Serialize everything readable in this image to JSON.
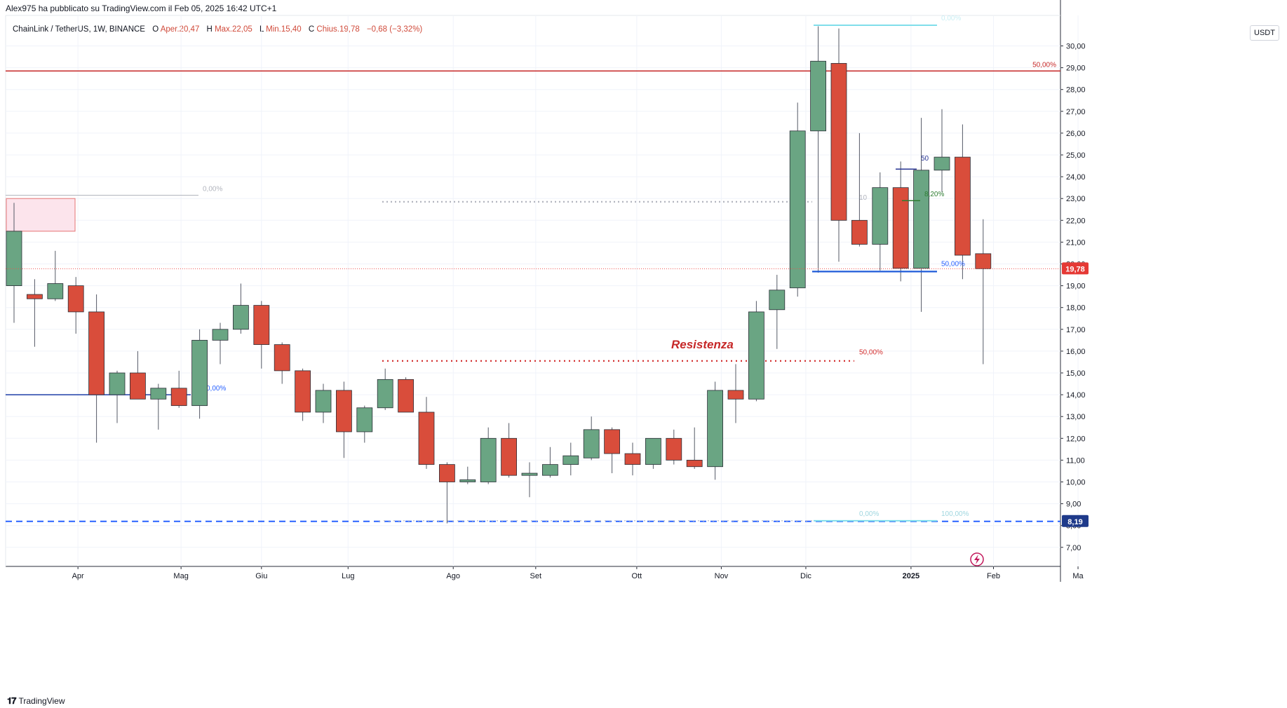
{
  "header": {
    "published": "Alex975 ha pubblicato su TradingView.com il Feb 05, 2025 16:42 UTC+1",
    "symbol": "ChainLink / TetherUS, 1W, BINANCE",
    "o_label": "O",
    "o_value": "Aper.20,47",
    "h_label": "H",
    "h_value": "Max.22,05",
    "l_label": "L",
    "l_value": "Min.15,40",
    "c_label": "C",
    "c_value": "Chius.19,78",
    "change": "−0,68 (−3,32%)"
  },
  "axis_unit": "USDT",
  "brand": "TradingView",
  "colors": {
    "up": "#6aa583",
    "down": "#d94d3b",
    "wick": "#555a66",
    "red_line": "#c62828",
    "blue_line": "#1e3ea8",
    "dash_blue": "#2962ff"
  },
  "chart_data": {
    "type": "candlestick",
    "ylim": [
      6.0,
      31.5
    ],
    "y_ticks": [
      "7,00",
      "8,00",
      "9,00",
      "10,00",
      "11,00",
      "12,00",
      "13,00",
      "14,00",
      "15,00",
      "16,00",
      "17,00",
      "18,00",
      "19,00",
      "20,00",
      "21,00",
      "22,00",
      "23,00",
      "24,00",
      "25,00",
      "26,00",
      "27,00",
      "28,00",
      "29,00",
      "30,00"
    ],
    "x_ticks": [
      {
        "label": "Apr",
        "i": 3.1
      },
      {
        "label": "Mag",
        "i": 8.1
      },
      {
        "label": "Giu",
        "i": 12.0
      },
      {
        "label": "Lug",
        "i": 16.2
      },
      {
        "label": "Ago",
        "i": 21.3
      },
      {
        "label": "Set",
        "i": 25.3
      },
      {
        "label": "Ott",
        "i": 30.2
      },
      {
        "label": "Nov",
        "i": 34.3
      },
      {
        "label": "Dic",
        "i": 38.4
      },
      {
        "label": "2025",
        "i": 43.5
      },
      {
        "label": "Feb",
        "i": 47.5
      },
      {
        "label": "Ma",
        "i": 51.6
      }
    ],
    "candles": [
      {
        "o": 19.0,
        "h": 22.8,
        "l": 17.3,
        "c": 21.5
      },
      {
        "o": 18.6,
        "h": 19.3,
        "l": 16.2,
        "c": 18.4
      },
      {
        "o": 18.4,
        "h": 20.6,
        "l": 18.3,
        "c": 19.1
      },
      {
        "o": 19.0,
        "h": 19.4,
        "l": 16.8,
        "c": 17.8
      },
      {
        "o": 17.8,
        "h": 18.6,
        "l": 11.8,
        "c": 14.0
      },
      {
        "o": 14.0,
        "h": 15.1,
        "l": 12.7,
        "c": 15.0
      },
      {
        "o": 15.0,
        "h": 16.0,
        "l": 13.8,
        "c": 13.8
      },
      {
        "o": 13.8,
        "h": 14.5,
        "l": 12.4,
        "c": 14.3
      },
      {
        "o": 14.3,
        "h": 15.1,
        "l": 13.4,
        "c": 13.5
      },
      {
        "o": 13.5,
        "h": 17.0,
        "l": 12.9,
        "c": 16.5
      },
      {
        "o": 16.5,
        "h": 17.3,
        "l": 15.4,
        "c": 17.0
      },
      {
        "o": 17.0,
        "h": 19.1,
        "l": 16.8,
        "c": 18.1
      },
      {
        "o": 18.1,
        "h": 18.3,
        "l": 15.2,
        "c": 16.3
      },
      {
        "o": 16.3,
        "h": 16.4,
        "l": 14.5,
        "c": 15.1
      },
      {
        "o": 15.1,
        "h": 15.2,
        "l": 12.8,
        "c": 13.2
      },
      {
        "o": 13.2,
        "h": 14.5,
        "l": 12.7,
        "c": 14.2
      },
      {
        "o": 14.2,
        "h": 14.6,
        "l": 11.1,
        "c": 12.3
      },
      {
        "o": 12.3,
        "h": 13.5,
        "l": 11.8,
        "c": 13.4
      },
      {
        "o": 13.4,
        "h": 15.2,
        "l": 13.3,
        "c": 14.7
      },
      {
        "o": 14.7,
        "h": 14.8,
        "l": 13.2,
        "c": 13.2
      },
      {
        "o": 13.2,
        "h": 13.9,
        "l": 10.6,
        "c": 10.8
      },
      {
        "o": 10.8,
        "h": 10.9,
        "l": 8.1,
        "c": 10.0
      },
      {
        "o": 10.0,
        "h": 10.7,
        "l": 9.9,
        "c": 10.1
      },
      {
        "o": 10.0,
        "h": 12.5,
        "l": 9.9,
        "c": 12.0
      },
      {
        "o": 12.0,
        "h": 12.7,
        "l": 10.2,
        "c": 10.3
      },
      {
        "o": 10.3,
        "h": 10.9,
        "l": 9.3,
        "c": 10.4
      },
      {
        "o": 10.3,
        "h": 11.6,
        "l": 10.2,
        "c": 10.8
      },
      {
        "o": 10.8,
        "h": 11.8,
        "l": 10.3,
        "c": 11.2
      },
      {
        "o": 11.1,
        "h": 13.0,
        "l": 11.0,
        "c": 12.4
      },
      {
        "o": 12.4,
        "h": 12.5,
        "l": 10.4,
        "c": 11.3
      },
      {
        "o": 11.3,
        "h": 11.8,
        "l": 10.3,
        "c": 10.8
      },
      {
        "o": 10.8,
        "h": 12.0,
        "l": 10.6,
        "c": 12.0
      },
      {
        "o": 12.0,
        "h": 12.4,
        "l": 10.8,
        "c": 11.0
      },
      {
        "o": 11.0,
        "h": 12.5,
        "l": 10.6,
        "c": 10.7
      },
      {
        "o": 10.7,
        "h": 14.6,
        "l": 10.1,
        "c": 14.2
      },
      {
        "o": 14.2,
        "h": 15.4,
        "l": 12.7,
        "c": 13.8
      },
      {
        "o": 13.8,
        "h": 18.3,
        "l": 13.7,
        "c": 17.8
      },
      {
        "o": 17.9,
        "h": 19.5,
        "l": 16.1,
        "c": 18.8
      },
      {
        "o": 18.9,
        "h": 27.4,
        "l": 18.5,
        "c": 26.1
      },
      {
        "o": 26.1,
        "h": 30.9,
        "l": 19.6,
        "c": 29.3
      },
      {
        "o": 29.2,
        "h": 30.8,
        "l": 20.1,
        "c": 22.0
      },
      {
        "o": 22.0,
        "h": 26.0,
        "l": 20.8,
        "c": 20.9
      },
      {
        "o": 20.9,
        "h": 24.2,
        "l": 19.7,
        "c": 23.5
      },
      {
        "o": 23.5,
        "h": 24.7,
        "l": 19.2,
        "c": 19.8
      },
      {
        "o": 19.8,
        "h": 26.7,
        "l": 17.8,
        "c": 24.3
      },
      {
        "o": 24.3,
        "h": 27.1,
        "l": 23.3,
        "c": 24.9
      },
      {
        "o": 24.9,
        "h": 26.4,
        "l": 19.3,
        "c": 20.4
      },
      {
        "o": 20.47,
        "h": 22.05,
        "l": 15.4,
        "c": 19.78
      }
    ],
    "last_price": "19,78",
    "support_price": "8,19",
    "annotations": {
      "resistance": "Resistenza",
      "fib_red_top": "50,00%",
      "fib_red_mid": "50,00%",
      "fib_gray_left": "0,00%",
      "fib_blue_left": "0,00%",
      "fib_blue_right": "50,00%",
      "fib_navy": "50",
      "fib_green": "8,20%",
      "fib_gray_mid": "10",
      "fib_low_a": "0,00%",
      "fib_low_b": "100,00%",
      "fib_top_faint": "0,00%"
    }
  }
}
